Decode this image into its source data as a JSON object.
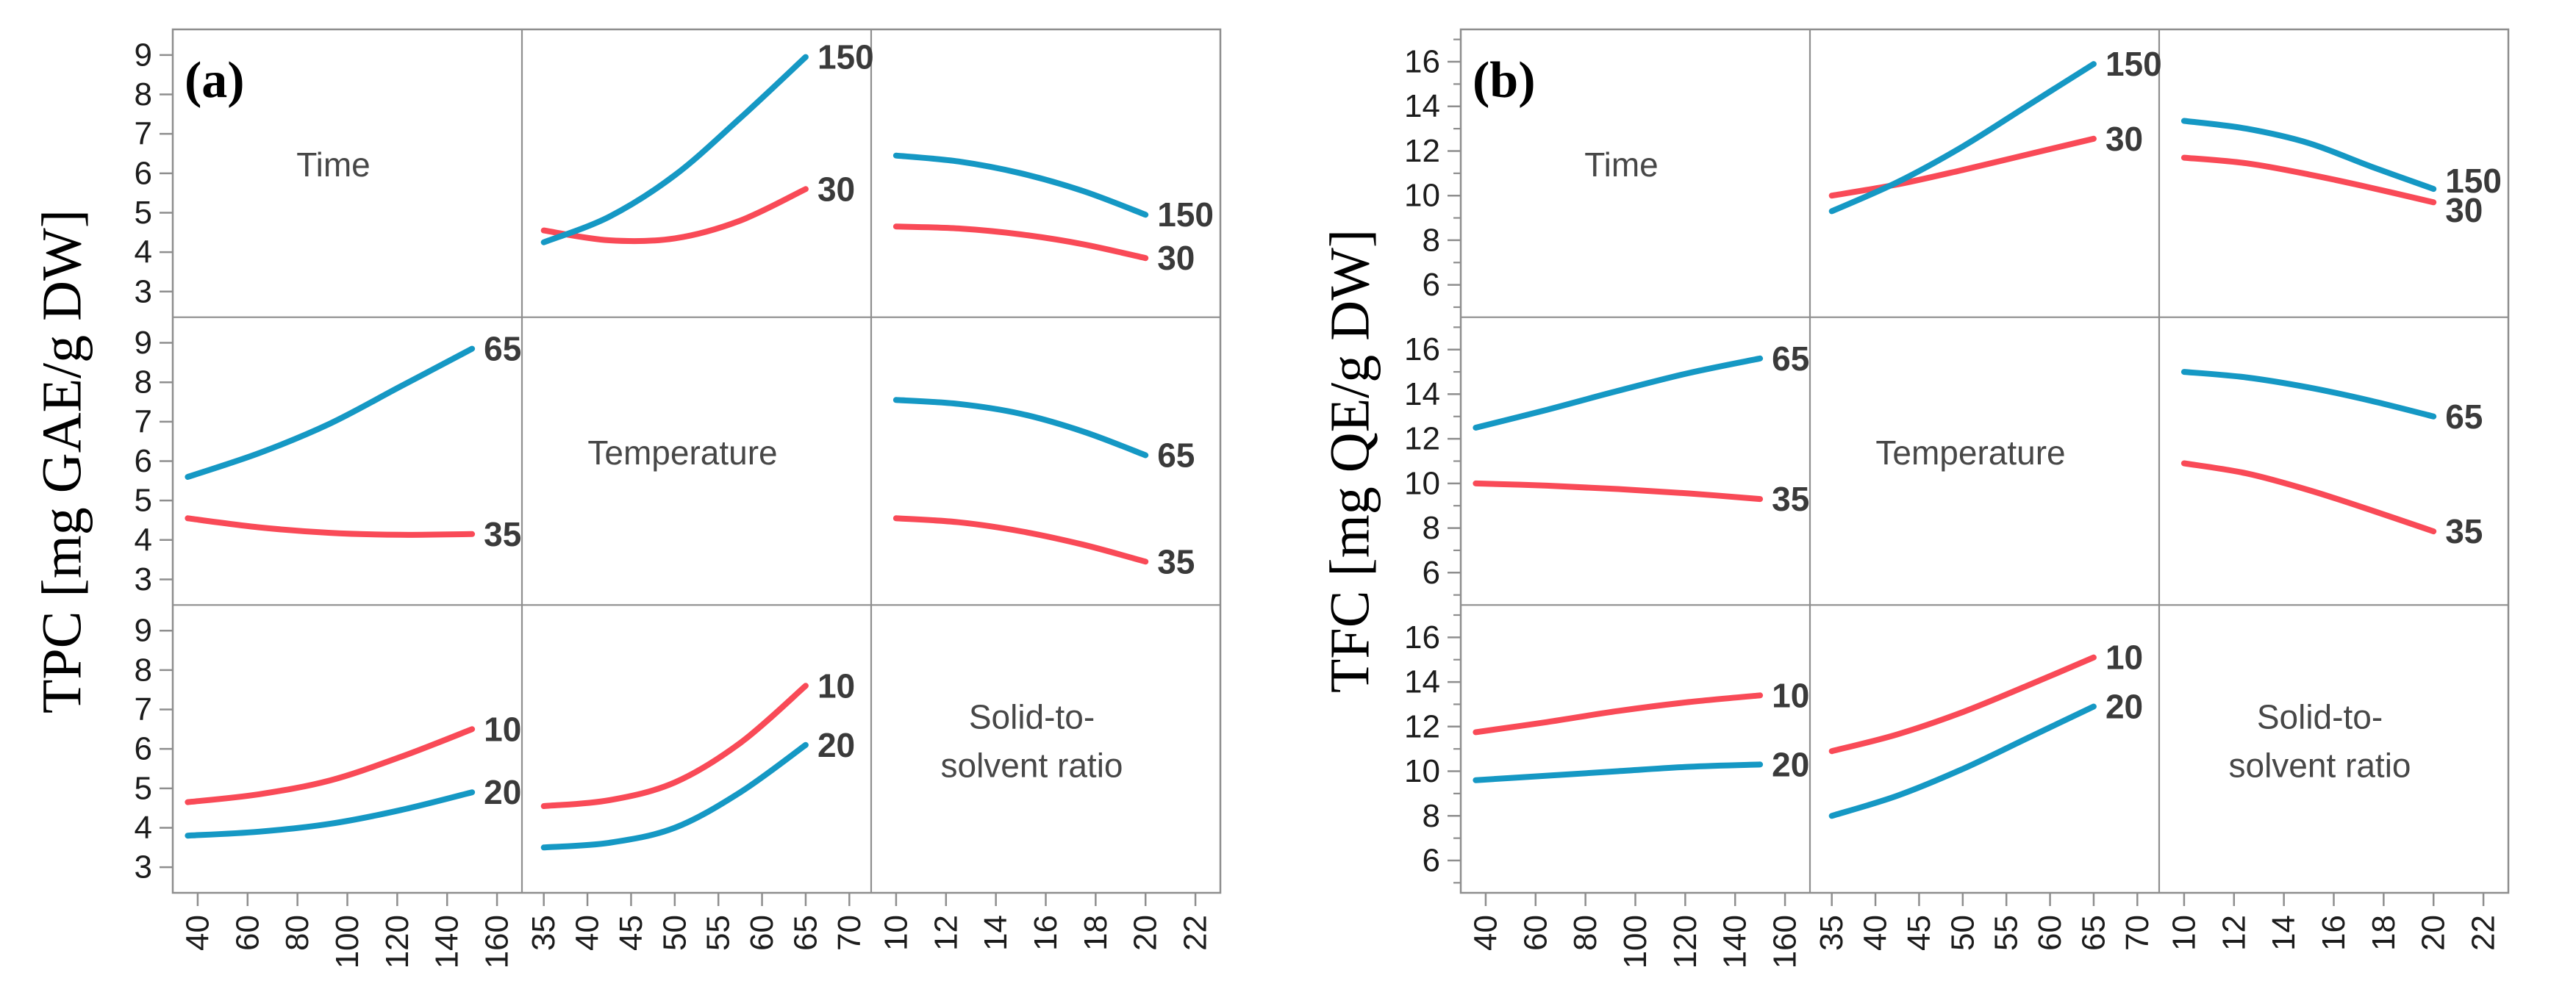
{
  "colors": {
    "blue": "#1598c4",
    "red": "#f94a57",
    "grid": "#8e8e8e",
    "tick_text": "#1c1c1c",
    "curve_label_text": "#3a3a3a",
    "diagonal_label_text": "#474747",
    "axis_title_text": "#000000"
  },
  "chart_data": [
    {
      "type": "line",
      "subtype": "interaction-matrix-3x3",
      "panel_label": "(a)",
      "ylabel": "TPC [mg GAE/g DW]",
      "ylim": [
        2.35,
        9.65
      ],
      "yticks": [
        9,
        8,
        7,
        6,
        5,
        4,
        3
      ],
      "yticks_minor": [],
      "legend_position": "none",
      "factors": [
        {
          "name": "Time",
          "display_lines": [
            "Time"
          ],
          "ticks": [
            40,
            60,
            80,
            100,
            120,
            140,
            160
          ],
          "range": [
            30,
            170
          ]
        },
        {
          "name": "Temperature",
          "display_lines": [
            "Temperature"
          ],
          "ticks": [
            35,
            40,
            45,
            50,
            55,
            60,
            65,
            70
          ],
          "range": [
            32.5,
            72.5
          ]
        },
        {
          "name": "Solid-to-solvent ratio",
          "display_lines": [
            "Solid-to-",
            "solvent ratio"
          ],
          "ticks": [
            10,
            12,
            14,
            16,
            18,
            20,
            22
          ],
          "range": [
            9,
            23
          ]
        }
      ],
      "cells": [
        {
          "row": 0,
          "col": 1,
          "x_factor": "Temperature",
          "x": [
            35,
            42.5,
            50,
            57.5,
            65
          ],
          "series": [
            {
              "label": "150",
              "color": "blue",
              "values": [
                4.25,
                4.9,
                5.95,
                7.4,
                8.95
              ]
            },
            {
              "label": "30",
              "color": "red",
              "values": [
                4.55,
                4.3,
                4.35,
                4.8,
                5.6
              ]
            }
          ]
        },
        {
          "row": 0,
          "col": 2,
          "x_factor": "Solid-to-solvent ratio",
          "x": [
            10,
            12.5,
            15,
            17.5,
            20
          ],
          "series": [
            {
              "label": "150",
              "color": "blue",
              "values": [
                6.45,
                6.3,
                6.0,
                5.55,
                4.95
              ]
            },
            {
              "label": "30",
              "color": "red",
              "values": [
                4.65,
                4.6,
                4.45,
                4.2,
                3.85
              ]
            }
          ]
        },
        {
          "row": 1,
          "col": 0,
          "x_factor": "Time",
          "x": [
            36,
            64.5,
            93,
            121.5,
            150
          ],
          "series": [
            {
              "label": "65",
              "color": "blue",
              "values": [
                5.6,
                6.2,
                6.95,
                7.9,
                8.85
              ]
            },
            {
              "label": "35",
              "color": "red",
              "values": [
                4.55,
                4.32,
                4.18,
                4.13,
                4.15
              ]
            }
          ]
        },
        {
          "row": 1,
          "col": 2,
          "x_factor": "Solid-to-solvent ratio",
          "x": [
            10,
            12.5,
            15,
            17.5,
            20
          ],
          "series": [
            {
              "label": "65",
              "color": "blue",
              "values": [
                7.55,
                7.45,
                7.2,
                6.75,
                6.15
              ]
            },
            {
              "label": "35",
              "color": "red",
              "values": [
                4.55,
                4.45,
                4.22,
                3.88,
                3.45
              ]
            }
          ]
        },
        {
          "row": 2,
          "col": 0,
          "x_factor": "Time",
          "x": [
            36,
            64.5,
            93,
            121.5,
            150
          ],
          "series": [
            {
              "label": "10",
              "color": "red",
              "values": [
                4.65,
                4.85,
                5.2,
                5.8,
                6.5
              ]
            },
            {
              "label": "20",
              "color": "blue",
              "values": [
                3.8,
                3.9,
                4.1,
                4.45,
                4.9
              ]
            }
          ]
        },
        {
          "row": 2,
          "col": 1,
          "x_factor": "Temperature",
          "x": [
            35,
            42.5,
            50,
            57.5,
            65
          ],
          "series": [
            {
              "label": "10",
              "color": "red",
              "values": [
                4.55,
                4.7,
                5.15,
                6.15,
                7.6
              ]
            },
            {
              "label": "20",
              "color": "blue",
              "values": [
                3.5,
                3.62,
                4.0,
                4.9,
                6.1
              ]
            }
          ]
        }
      ]
    },
    {
      "type": "line",
      "subtype": "interaction-matrix-3x3",
      "panel_label": "(b)",
      "ylabel": "TFC [mg QE/g DW]",
      "ylim": [
        4.55,
        17.45
      ],
      "yticks": [
        16,
        14,
        12,
        10,
        8,
        6
      ],
      "yticks_minor": [
        17,
        15,
        13,
        11,
        9,
        7,
        5
      ],
      "legend_position": "none",
      "factors": [
        {
          "name": "Time",
          "display_lines": [
            "Time"
          ],
          "ticks": [
            40,
            60,
            80,
            100,
            120,
            140,
            160
          ],
          "range": [
            30,
            170
          ]
        },
        {
          "name": "Temperature",
          "display_lines": [
            "Temperature"
          ],
          "ticks": [
            35,
            40,
            45,
            50,
            55,
            60,
            65,
            70
          ],
          "range": [
            32.5,
            72.5
          ]
        },
        {
          "name": "Solid-to-solvent ratio",
          "display_lines": [
            "Solid-to-",
            "solvent ratio"
          ],
          "ticks": [
            10,
            12,
            14,
            16,
            18,
            20,
            22
          ],
          "range": [
            9,
            23
          ]
        }
      ],
      "cells": [
        {
          "row": 0,
          "col": 1,
          "x_factor": "Temperature",
          "x": [
            35,
            42.5,
            50,
            57.5,
            65
          ],
          "series": [
            {
              "label": "150",
              "color": "blue",
              "values": [
                9.3,
                10.6,
                12.2,
                14.05,
                15.9
              ]
            },
            {
              "label": "30",
              "color": "red",
              "values": [
                10.0,
                10.5,
                11.15,
                11.85,
                12.55
              ]
            }
          ]
        },
        {
          "row": 0,
          "col": 2,
          "x_factor": "Solid-to-solvent ratio",
          "x": [
            10,
            12.5,
            15,
            17.5,
            20
          ],
          "series": [
            {
              "label": "150",
              "color": "blue",
              "values": [
                13.35,
                13.0,
                12.35,
                11.3,
                10.3
              ]
            },
            {
              "label": "30",
              "color": "red",
              "values": [
                11.7,
                11.45,
                10.95,
                10.35,
                9.7
              ]
            }
          ]
        },
        {
          "row": 1,
          "col": 0,
          "x_factor": "Time",
          "x": [
            36,
            64.5,
            93,
            121.5,
            150
          ],
          "series": [
            {
              "label": "65",
              "color": "blue",
              "values": [
                12.5,
                13.3,
                14.15,
                14.95,
                15.6
              ]
            },
            {
              "label": "35",
              "color": "red",
              "values": [
                10.0,
                9.9,
                9.75,
                9.55,
                9.3
              ]
            }
          ]
        },
        {
          "row": 1,
          "col": 2,
          "x_factor": "Solid-to-solvent ratio",
          "x": [
            10,
            12.5,
            15,
            17.5,
            20
          ],
          "series": [
            {
              "label": "65",
              "color": "blue",
              "values": [
                15.0,
                14.75,
                14.3,
                13.7,
                13.0
              ]
            },
            {
              "label": "35",
              "color": "red",
              "values": [
                10.9,
                10.45,
                9.7,
                8.8,
                7.85
              ]
            }
          ]
        },
        {
          "row": 2,
          "col": 0,
          "x_factor": "Time",
          "x": [
            36,
            64.5,
            93,
            121.5,
            150
          ],
          "series": [
            {
              "label": "10",
              "color": "red",
              "values": [
                11.75,
                12.2,
                12.7,
                13.1,
                13.4
              ]
            },
            {
              "label": "20",
              "color": "blue",
              "values": [
                9.6,
                9.8,
                10.0,
                10.2,
                10.3
              ]
            }
          ]
        },
        {
          "row": 2,
          "col": 1,
          "x_factor": "Temperature",
          "x": [
            35,
            42.5,
            50,
            57.5,
            65
          ],
          "series": [
            {
              "label": "10",
              "color": "red",
              "values": [
                10.9,
                11.65,
                12.65,
                13.85,
                15.1
              ]
            },
            {
              "label": "20",
              "color": "blue",
              "values": [
                8.0,
                8.9,
                10.1,
                11.5,
                12.9
              ]
            }
          ]
        }
      ]
    }
  ]
}
